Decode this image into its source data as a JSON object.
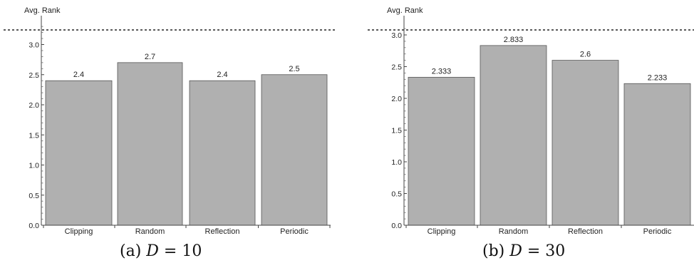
{
  "chart_data": [
    {
      "type": "bar",
      "ylabel": "Avg. Rank",
      "categories": [
        "Clipping",
        "Random",
        "Reflection",
        "Periodic"
      ],
      "values": [
        2.4,
        2.7,
        2.4,
        2.5
      ],
      "value_labels": [
        "2.4",
        "2.7",
        "2.4",
        "2.5"
      ],
      "yticks": [
        "0.0",
        "0.5",
        "1.0",
        "1.5",
        "2.0",
        "2.5",
        "3.0"
      ],
      "ylim": [
        0,
        3.3
      ],
      "reference_line": 3.5,
      "bar_color": "#b0b0b0",
      "caption": {
        "prefix": "(a) ",
        "var": "D",
        "rest": " = 10"
      }
    },
    {
      "type": "bar",
      "ylabel": "Avg. Rank",
      "categories": [
        "Clipping",
        "Random",
        "Reflection",
        "Periodic"
      ],
      "values": [
        2.333,
        2.833,
        2.6,
        2.233
      ],
      "value_labels": [
        "2.333",
        "2.833",
        "2.6",
        "2.233"
      ],
      "yticks": [
        "0.0",
        "0.5",
        "1.0",
        "1.5",
        "2.0",
        "2.5",
        "3.0"
      ],
      "ylim": [
        0,
        3.05
      ],
      "reference_line": 3.05,
      "bar_color": "#b0b0b0",
      "caption": {
        "prefix": "(b) ",
        "var": "D",
        "rest": " = 30"
      }
    }
  ]
}
